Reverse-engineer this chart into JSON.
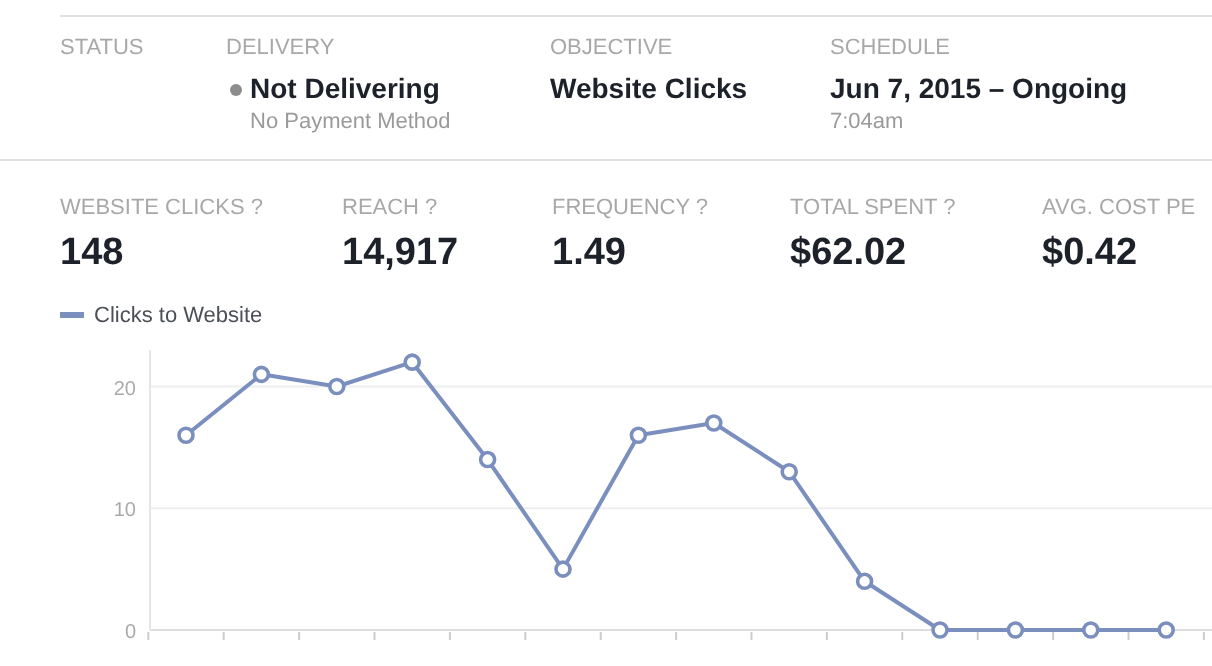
{
  "chart_data": [
    {
      "type": "other",
      "annotations": [
        "STATUS",
        "DELIVERY",
        "Not Delivering",
        "No Payment Method",
        "OBJECTIVE",
        "Website Clicks",
        "SCHEDULE",
        "Jun 7, 2015 – Ongoing",
        "7:04am",
        "WEBSITE CLICKS ?",
        "148",
        "REACH ?",
        "14,917",
        "FREQUENCY ?",
        "1.49",
        "TOTAL SPENT ?",
        "$62.02",
        "AVG. COST PE",
        "$0.42"
      ]
    },
    {
      "type": "line",
      "categories": [
        null,
        null,
        null,
        null,
        null,
        null,
        null,
        null,
        null,
        null,
        null,
        null,
        null,
        null
      ],
      "series": [
        {
          "name": "Clicks to Website",
          "color": "#7b8fbf",
          "values": [
            16,
            21,
            20,
            22,
            14,
            5,
            16,
            17,
            13,
            4,
            0,
            0,
            0,
            0
          ]
        }
      ],
      "ylim": [
        0,
        23
      ],
      "yticks": [
        0,
        10,
        20
      ],
      "grid": "y",
      "legend": "top left",
      "marker": "circle",
      "line_style": "solid",
      "tick_labels": "y"
    }
  ]
}
